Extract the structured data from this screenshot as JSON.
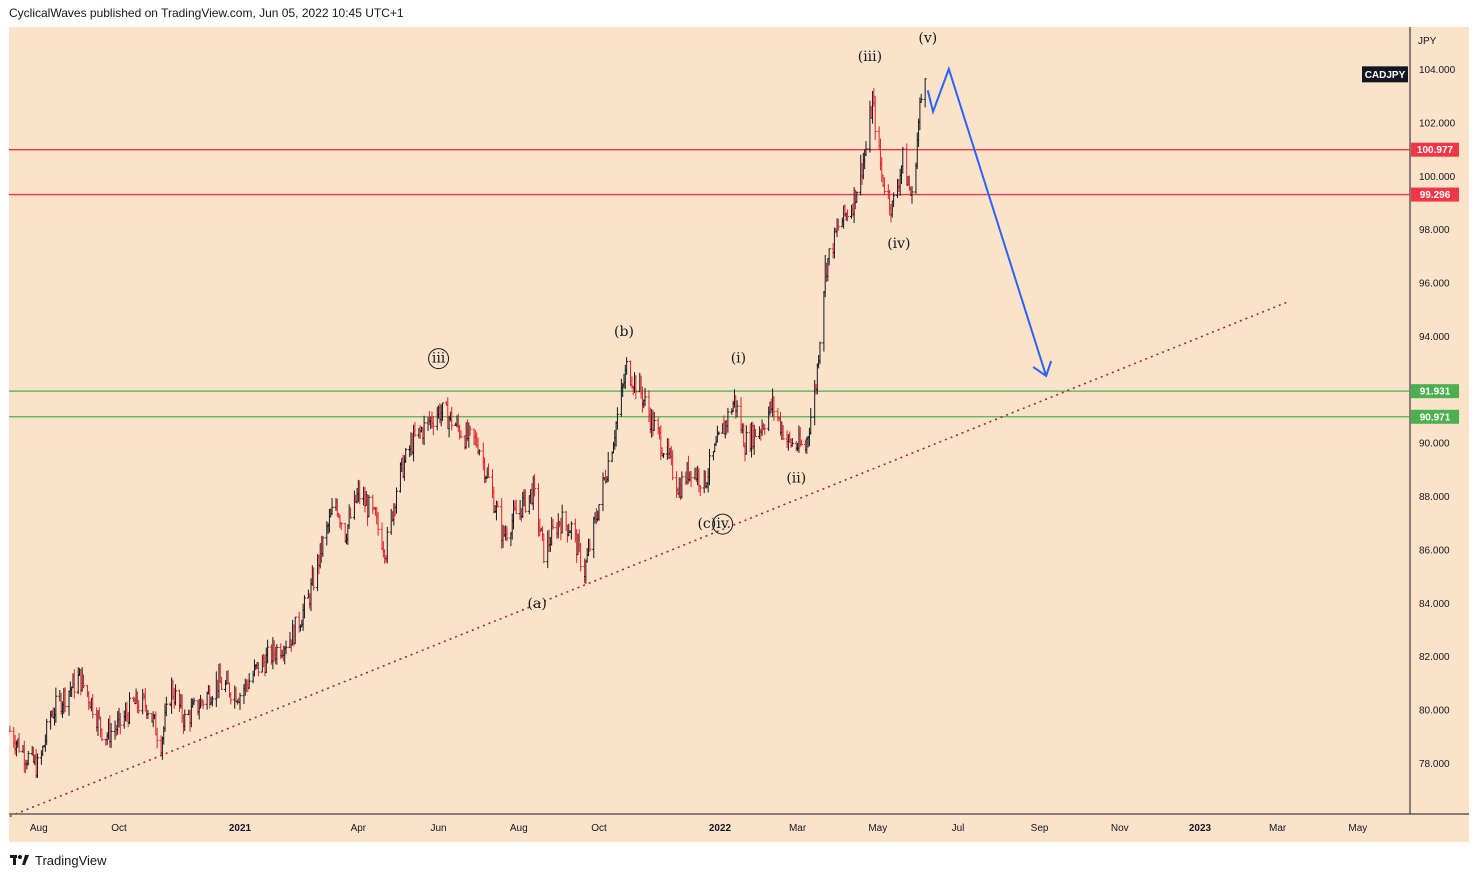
{
  "header": {
    "text": "CyclicalWaves published on TradingView.com, Jun 05, 2022 10:45 UTC+1"
  },
  "brand": {
    "name": "TradingView",
    "icon": "tradingview-logo-icon"
  },
  "chart_data": {
    "type": "candlestick",
    "symbol": "CADJPY",
    "currency_label": "JPY",
    "ylim": [
      76.0,
      105.3
    ],
    "y_ticks": [
      "104.000",
      "102.000",
      "100.000",
      "98.000",
      "96.000",
      "94.000",
      "90.000",
      "88.000",
      "86.000",
      "84.000",
      "82.000",
      "80.000",
      "78.000"
    ],
    "x_ticks": [
      {
        "label": "Aug",
        "date": "2020-08-01",
        "bold": false
      },
      {
        "label": "Oct",
        "date": "2020-10-01",
        "bold": false
      },
      {
        "label": "2021",
        "date": "2021-01-01",
        "bold": true
      },
      {
        "label": "Apr",
        "date": "2021-04-01",
        "bold": false
      },
      {
        "label": "Jun",
        "date": "2021-06-01",
        "bold": false
      },
      {
        "label": "Aug",
        "date": "2021-08-01",
        "bold": false
      },
      {
        "label": "Oct",
        "date": "2021-10-01",
        "bold": false
      },
      {
        "label": "2022",
        "date": "2022-01-01",
        "bold": true
      },
      {
        "label": "Mar",
        "date": "2022-03-01",
        "bold": false
      },
      {
        "label": "May",
        "date": "2022-05-01",
        "bold": false
      },
      {
        "label": "Jul",
        "date": "2022-07-01",
        "bold": false
      },
      {
        "label": "Sep",
        "date": "2022-09-01",
        "bold": false
      },
      {
        "label": "Nov",
        "date": "2022-11-01",
        "bold": false
      },
      {
        "label": "2023",
        "date": "2023-01-01",
        "bold": true
      },
      {
        "label": "Mar",
        "date": "2023-03-01",
        "bold": false
      },
      {
        "label": "May",
        "date": "2023-05-01",
        "bold": false
      }
    ],
    "price_path": [
      [
        "2020-07-10",
        79.2
      ],
      [
        "2020-07-22",
        78.3
      ],
      [
        "2020-08-01",
        77.8
      ],
      [
        "2020-08-10",
        79.8
      ],
      [
        "2020-08-20",
        80.5
      ],
      [
        "2020-09-01",
        81.2
      ],
      [
        "2020-09-10",
        80.3
      ],
      [
        "2020-09-20",
        79.0
      ],
      [
        "2020-10-01",
        79.4
      ],
      [
        "2020-10-12",
        80.2
      ],
      [
        "2020-10-22",
        80.2
      ],
      [
        "2020-11-02",
        78.8
      ],
      [
        "2020-11-10",
        80.8
      ],
      [
        "2020-11-20",
        79.6
      ],
      [
        "2020-12-01",
        80.2
      ],
      [
        "2020-12-15",
        81.0
      ],
      [
        "2021-01-01",
        80.6
      ],
      [
        "2021-01-15",
        81.6
      ],
      [
        "2021-01-28",
        82.2
      ],
      [
        "2021-02-10",
        82.8
      ],
      [
        "2021-02-22",
        84.1
      ],
      [
        "2021-03-05",
        86.2
      ],
      [
        "2021-03-15",
        87.8
      ],
      [
        "2021-03-22",
        86.6
      ],
      [
        "2021-04-01",
        88.1
      ],
      [
        "2021-04-12",
        87.3
      ],
      [
        "2021-04-22",
        86.0
      ],
      [
        "2021-05-01",
        88.6
      ],
      [
        "2021-05-12",
        90.0
      ],
      [
        "2021-05-25",
        90.8
      ],
      [
        "2021-06-01",
        91.2
      ],
      [
        "2021-06-10",
        90.9
      ],
      [
        "2021-06-22",
        90.2
      ],
      [
        "2021-07-01",
        90.0
      ],
      [
        "2021-07-10",
        88.4
      ],
      [
        "2021-07-20",
        86.5
      ],
      [
        "2021-08-01",
        87.5
      ],
      [
        "2021-08-12",
        88.2
      ],
      [
        "2021-08-20",
        85.9
      ],
      [
        "2021-09-01",
        87.1
      ],
      [
        "2021-09-10",
        86.8
      ],
      [
        "2021-09-20",
        85.2
      ],
      [
        "2021-10-01",
        87.7
      ],
      [
        "2021-10-12",
        90.2
      ],
      [
        "2021-10-22",
        92.8
      ],
      [
        "2021-11-01",
        92.0
      ],
      [
        "2021-11-10",
        90.8
      ],
      [
        "2021-11-22",
        89.5
      ],
      [
        "2021-12-01",
        88.3
      ],
      [
        "2021-12-10",
        89.1
      ],
      [
        "2021-12-20",
        88.5
      ],
      [
        "2022-01-01",
        90.2
      ],
      [
        "2022-01-12",
        91.6
      ],
      [
        "2022-01-20",
        90.0
      ],
      [
        "2022-02-01",
        90.6
      ],
      [
        "2022-02-10",
        91.4
      ],
      [
        "2022-02-22",
        90.0
      ],
      [
        "2022-03-07",
        89.8
      ],
      [
        "2022-03-15",
        92.2
      ],
      [
        "2022-03-22",
        96.5
      ],
      [
        "2022-04-01",
        98.1
      ],
      [
        "2022-04-12",
        99.0
      ],
      [
        "2022-04-22",
        101.0
      ],
      [
        "2022-04-27",
        102.8
      ],
      [
        "2022-05-04",
        100.0
      ],
      [
        "2022-05-12",
        98.8
      ],
      [
        "2022-05-20",
        100.6
      ],
      [
        "2022-05-27",
        99.1
      ],
      [
        "2022-06-02",
        102.5
      ],
      [
        "2022-06-06",
        104.0
      ]
    ],
    "horizontal_levels": [
      {
        "price": 100.977,
        "label": "100.977",
        "color": "#f23645"
      },
      {
        "price": 99.296,
        "label": "99.296",
        "color": "#f23645"
      },
      {
        "price": 91.931,
        "label": "91.931",
        "color": "#4caf50"
      },
      {
        "price": 90.971,
        "label": "90.971",
        "color": "#4caf50"
      }
    ],
    "trendline": {
      "from": {
        "date": "2020-07-10",
        "price": 76.0
      },
      "to": {
        "date": "2023-03-10",
        "price": 95.3
      },
      "color": "#a52a2a",
      "style": "dotted"
    },
    "projection": {
      "points": [
        [
          "2022-06-08",
          103.2
        ],
        [
          "2022-06-12",
          102.4
        ],
        [
          "2022-06-24",
          104.0
        ],
        [
          "2022-09-06",
          92.5
        ]
      ],
      "color": "#2962ff"
    },
    "wave_labels": [
      {
        "text": "iii",
        "date": "2021-06-01",
        "price": 93.0,
        "circled": true
      },
      {
        "text": "(a)",
        "date": "2021-08-15",
        "price": 83.8,
        "circled": false
      },
      {
        "text": "(b)",
        "date": "2021-10-20",
        "price": 94.0,
        "circled": false
      },
      {
        "text": "(c)",
        "date": "2021-12-22",
        "price": 86.8,
        "circled": false
      },
      {
        "text": "iv",
        "date": "2022-01-03",
        "price": 86.8,
        "circled": true
      },
      {
        "text": "(i)",
        "date": "2022-01-15",
        "price": 93.0,
        "circled": false
      },
      {
        "text": "(ii)",
        "date": "2022-02-28",
        "price": 88.5,
        "circled": false
      },
      {
        "text": "(iii)",
        "date": "2022-04-25",
        "price": 104.3,
        "circled": false
      },
      {
        "text": "(iv)",
        "date": "2022-05-17",
        "price": 97.3,
        "circled": false
      },
      {
        "text": "(v)",
        "date": "2022-06-08",
        "price": 105.0,
        "circled": false
      }
    ],
    "colors": {
      "background": "#fbe3c9",
      "up_bar": "#131722",
      "down_bar": "#e0202e",
      "axis_text": "#131722",
      "symbol_tag": "#131722"
    }
  }
}
